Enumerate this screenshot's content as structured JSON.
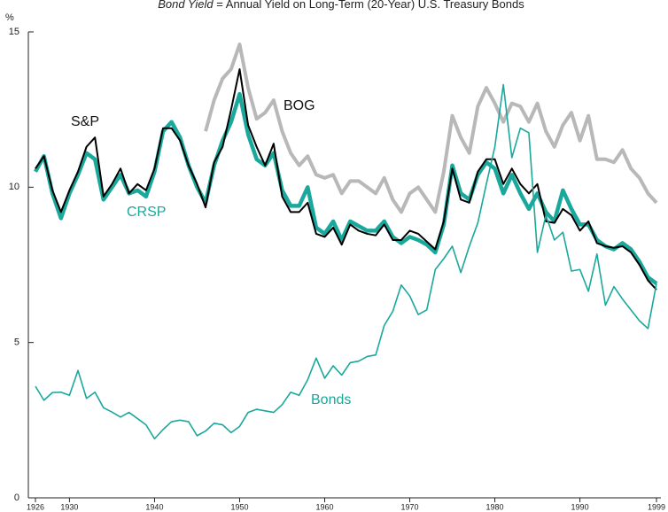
{
  "chart_data": {
    "type": "line",
    "subtitle": {
      "term": "Bond Yield",
      "text": "= Annual Yield on Long-Term (20-Year) U.S. Treasury Bonds"
    },
    "ylabel": "%",
    "x": [
      1926,
      1927,
      1928,
      1929,
      1930,
      1931,
      1932,
      1933,
      1934,
      1935,
      1936,
      1937,
      1938,
      1939,
      1940,
      1941,
      1942,
      1943,
      1944,
      1945,
      1946,
      1947,
      1948,
      1949,
      1950,
      1951,
      1952,
      1953,
      1954,
      1955,
      1956,
      1957,
      1958,
      1959,
      1960,
      1961,
      1962,
      1963,
      1964,
      1965,
      1966,
      1967,
      1968,
      1969,
      1970,
      1971,
      1972,
      1973,
      1974,
      1975,
      1976,
      1977,
      1978,
      1979,
      1980,
      1981,
      1982,
      1983,
      1984,
      1985,
      1986,
      1987,
      1988,
      1989,
      1990,
      1991,
      1992,
      1993,
      1994,
      1995,
      1996,
      1997,
      1998,
      1999
    ],
    "xlim": [
      1926,
      1999
    ],
    "xticks": [
      1926,
      1930,
      1940,
      1950,
      1960,
      1970,
      1980,
      1990,
      1999
    ],
    "ylim": [
      0,
      15
    ],
    "yticks": [
      0,
      5,
      10,
      15
    ],
    "series": [
      {
        "name": "BOG",
        "color": "#b8b8b8",
        "width": 4,
        "values": [
          null,
          null,
          null,
          null,
          null,
          null,
          null,
          null,
          null,
          null,
          null,
          null,
          null,
          null,
          null,
          null,
          null,
          null,
          null,
          null,
          11.8,
          12.8,
          13.5,
          13.8,
          14.6,
          13.2,
          12.2,
          12.4,
          12.8,
          11.8,
          11.1,
          10.7,
          11.0,
          10.4,
          10.3,
          10.4,
          9.8,
          10.2,
          10.2,
          10.0,
          9.8,
          10.3,
          9.6,
          9.2,
          9.8,
          10.0,
          9.6,
          9.2,
          10.5,
          12.3,
          11.6,
          11.1,
          12.6,
          13.2,
          12.7,
          12.1,
          12.7,
          12.6,
          12.1,
          12.7,
          11.8,
          11.3,
          12.0,
          12.4,
          11.5,
          12.3,
          10.9,
          10.9,
          10.8,
          11.2,
          10.6,
          10.3,
          9.8,
          9.5
        ]
      },
      {
        "name": "CRSP",
        "color": "#1aa89c",
        "width": 4.5,
        "values": [
          10.5,
          11.0,
          9.8,
          9.0,
          9.8,
          10.4,
          11.1,
          10.9,
          9.6,
          10.0,
          10.4,
          9.8,
          9.9,
          9.7,
          10.5,
          11.8,
          12.1,
          11.6,
          10.7,
          10.0,
          9.5,
          10.7,
          11.5,
          12.1,
          13.0,
          11.7,
          10.9,
          10.7,
          11.1,
          9.9,
          9.4,
          9.4,
          10.0,
          8.7,
          8.5,
          8.9,
          8.3,
          8.9,
          8.75,
          8.6,
          8.6,
          8.9,
          8.4,
          8.2,
          8.4,
          8.3,
          8.15,
          7.9,
          8.8,
          10.7,
          9.8,
          9.6,
          10.4,
          10.8,
          10.6,
          9.8,
          10.4,
          9.8,
          9.3,
          9.8,
          9.2,
          8.9,
          9.9,
          9.3,
          8.8,
          8.8,
          8.3,
          8.1,
          8.0,
          8.2,
          8.0,
          7.6,
          7.1,
          6.9
        ]
      },
      {
        "name": "S&P",
        "color": "#000000",
        "width": 2,
        "values": [
          10.6,
          11.0,
          9.9,
          9.2,
          9.9,
          10.5,
          11.3,
          11.6,
          9.7,
          10.1,
          10.6,
          9.8,
          10.1,
          9.9,
          10.6,
          11.9,
          11.9,
          11.5,
          10.7,
          10.1,
          9.35,
          10.8,
          11.3,
          12.5,
          13.8,
          12.0,
          11.3,
          10.7,
          11.4,
          9.7,
          9.2,
          9.2,
          9.5,
          8.5,
          8.4,
          8.7,
          8.15,
          8.8,
          8.6,
          8.5,
          8.45,
          8.8,
          8.3,
          8.3,
          8.6,
          8.5,
          8.25,
          8.0,
          8.9,
          10.6,
          9.6,
          9.5,
          10.5,
          10.9,
          10.9,
          10.1,
          10.6,
          10.1,
          9.8,
          10.1,
          8.9,
          8.85,
          9.3,
          9.1,
          8.6,
          8.9,
          8.2,
          8.1,
          8.05,
          8.1,
          7.9,
          7.5,
          7.0,
          6.7
        ]
      },
      {
        "name": "Bonds",
        "color": "#1aa89c",
        "width": 1.6,
        "values": [
          3.59,
          3.14,
          3.39,
          3.4,
          3.3,
          4.1,
          3.2,
          3.4,
          2.9,
          2.76,
          2.6,
          2.75,
          2.55,
          2.35,
          1.9,
          2.2,
          2.45,
          2.5,
          2.45,
          2.0,
          2.15,
          2.4,
          2.35,
          2.1,
          2.3,
          2.75,
          2.85,
          2.8,
          2.75,
          3.0,
          3.4,
          3.3,
          3.8,
          4.5,
          3.85,
          4.25,
          3.95,
          4.35,
          4.4,
          4.55,
          4.6,
          5.55,
          6.0,
          6.85,
          6.5,
          5.9,
          6.05,
          7.35,
          7.7,
          8.1,
          7.25,
          8.1,
          8.85,
          10.1,
          11.3,
          13.3,
          10.95,
          11.9,
          11.75,
          7.9,
          9.1,
          8.3,
          8.55,
          7.3,
          7.35,
          6.65,
          7.85,
          6.2,
          6.8,
          6.4,
          6.05,
          5.7,
          5.45,
          6.9
        ]
      }
    ]
  }
}
